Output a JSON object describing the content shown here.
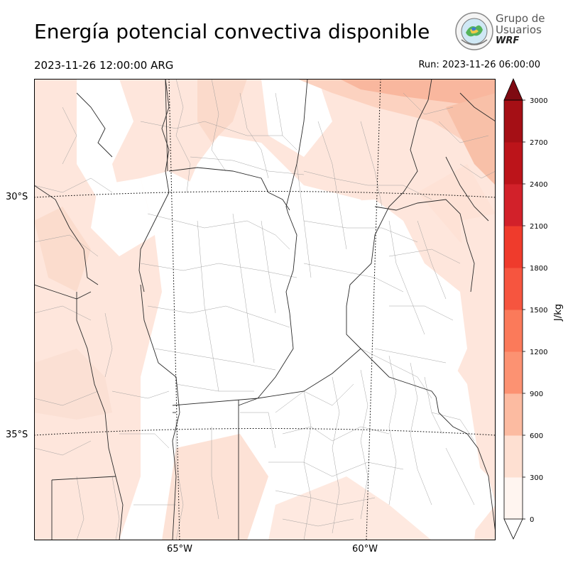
{
  "header": {
    "title": "Energía potencial convectiva disponible",
    "valid_time": "2023-11-26 12:00:00 ARG",
    "run_time": "Run: 2023-11-26 06:00:00"
  },
  "logo": {
    "line1": "Grupo de",
    "line2": "Usuarios",
    "line3": "WRF"
  },
  "map": {
    "lat_labels": [
      "30°S",
      "35°S"
    ],
    "lon_labels": [
      "65°W",
      "60°W"
    ]
  },
  "colorbar": {
    "unit": "J/kg",
    "ticks": [
      "0",
      "300",
      "600",
      "900",
      "1200",
      "1500",
      "1800",
      "2100",
      "2400",
      "2700",
      "3000"
    ],
    "colors": [
      "#fff5f0",
      "#fee0d2",
      "#fcbba1",
      "#fc9272",
      "#fb7a5a",
      "#f6553f",
      "#ef3b2c",
      "#d2212a",
      "#bc141a",
      "#a50f15",
      "#7f0a12"
    ],
    "extend": "both"
  }
}
